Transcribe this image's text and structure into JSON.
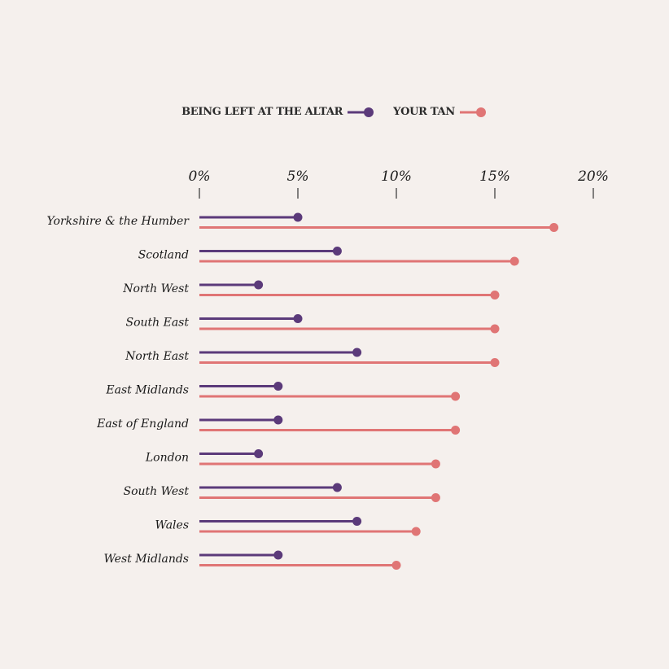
{
  "chart_data": {
    "type": "lollipop",
    "legend": {
      "position": "top-center",
      "items": [
        {
          "label": "BEING LEFT AT THE ALTAR",
          "color": "#5b3a7a"
        },
        {
          "label": "YOUR TAN",
          "color": "#e07575"
        }
      ]
    },
    "xaxis": {
      "ticks": [
        "0%",
        "5%",
        "10%",
        "15%",
        "20%"
      ],
      "tick_values": [
        0,
        5,
        10,
        15,
        20
      ],
      "range": [
        0,
        20
      ],
      "position": "top"
    },
    "categories": [
      "Yorkshire & the Humber",
      "Scotland",
      "North West",
      "South East",
      "North East",
      "East Midlands",
      "East of England",
      "London",
      "South West",
      "Wales",
      "West Midlands"
    ],
    "series": [
      {
        "name": "BEING LEFT AT THE ALTAR",
        "color": "#5b3a7a",
        "values": [
          5,
          7,
          3,
          5,
          8,
          4,
          4,
          3,
          7,
          8,
          4
        ]
      },
      {
        "name": "YOUR TAN",
        "color": "#e07575",
        "values": [
          18,
          16,
          15,
          15,
          15,
          13,
          13,
          12,
          12,
          11,
          10
        ]
      }
    ],
    "grid": false
  }
}
